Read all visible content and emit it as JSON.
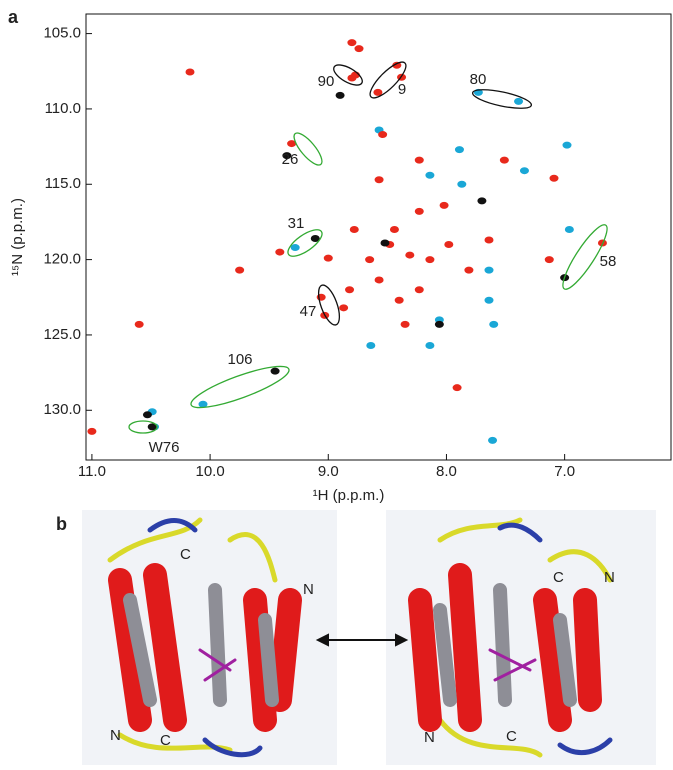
{
  "panel_labels": [
    "a",
    "b"
  ],
  "chart_data": {
    "type": "scatter",
    "x_label": "¹H (p.p.m.)",
    "y_label": "¹⁵N (p.p.m.)",
    "xlim": [
      11.05,
      6.1
    ],
    "ylim": [
      103.7,
      133.3
    ],
    "xticks": [
      {
        "value": 11,
        "label": "11.0"
      },
      {
        "value": 10,
        "label": "10.0"
      },
      {
        "value": 9,
        "label": "9.0"
      },
      {
        "value": 8,
        "label": "8.0"
      },
      {
        "value": 7,
        "label": "7.0"
      }
    ],
    "yticks": [
      {
        "value": 105,
        "label": "105.0"
      },
      {
        "value": 110,
        "label": "110.0"
      },
      {
        "value": 115,
        "label": "115.0"
      },
      {
        "value": 120,
        "label": "120.0"
      },
      {
        "value": 125,
        "label": "125.0"
      },
      {
        "value": 130,
        "label": "130.0"
      }
    ],
    "series": [
      {
        "color": "#1aa7d6",
        "x": [
          10.06,
          9.28,
          7.39,
          7.73,
          10.49,
          10.47,
          8.57,
          7.64,
          8.06,
          7.6,
          6.96,
          6.98,
          8.14,
          7.87,
          7.61,
          8.64,
          8.14,
          7.64,
          7.89,
          7.34
        ],
        "values": [
          129.6,
          119.2,
          109.5,
          108.9,
          130.1,
          131.1,
          111.4,
          120.7,
          124.0,
          124.3,
          118.0,
          112.4,
          114.4,
          115.0,
          132.0,
          125.7,
          125.7,
          122.7,
          112.7,
          114.1
        ]
      },
      {
        "color": "#e8291c",
        "x": [
          10.17,
          8.8,
          8.74,
          8.77,
          8.42,
          8.8,
          8.38,
          8.58,
          9.31,
          9.0,
          9.03,
          9.06,
          11.0,
          10.6,
          9.41,
          8.78,
          8.65,
          8.48,
          8.31,
          8.57,
          8.23,
          7.98,
          7.81,
          8.4,
          8.82,
          8.14,
          8.54,
          8.23,
          8.02,
          8.44,
          6.68,
          7.51,
          7.09,
          7.91,
          8.23,
          7.64,
          9.75,
          8.87,
          8.35,
          8.57,
          7.13
        ],
        "values": [
          107.55,
          105.6,
          106.0,
          107.75,
          107.1,
          107.95,
          107.9,
          108.9,
          112.3,
          119.9,
          123.7,
          122.5,
          131.4,
          124.3,
          119.5,
          118.0,
          120.0,
          119.0,
          119.7,
          121.35,
          122.0,
          119.0,
          120.7,
          122.7,
          122.0,
          120.0,
          111.7,
          113.4,
          116.4,
          118.0,
          118.9,
          113.4,
          114.6,
          128.5,
          116.8,
          118.7,
          120.7,
          123.2,
          124.3,
          114.7,
          120.0
        ]
      },
      {
        "color": "#111111",
        "x": [
          8.9,
          9.35,
          9.11,
          7.0,
          9.45,
          10.49,
          10.53,
          7.7,
          8.06,
          8.52
        ],
        "values": [
          109.1,
          113.1,
          118.6,
          121.2,
          127.4,
          131.1,
          130.3,
          116.1,
          124.3,
          118.9
        ]
      }
    ],
    "annotations": [
      "90",
      "9",
      "80",
      "26",
      "31",
      "58",
      "47",
      "106",
      "W76"
    ]
  },
  "structure_labels": [
    "C",
    "N",
    "N",
    "C",
    "C",
    "N",
    "N",
    "C"
  ]
}
